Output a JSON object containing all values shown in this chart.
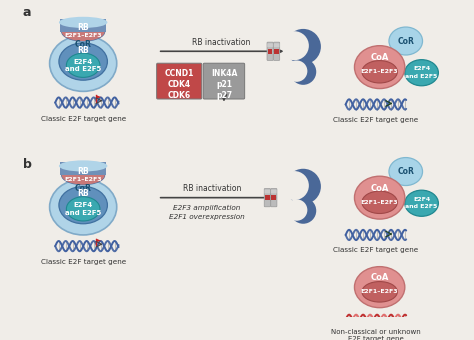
{
  "bg_color": "#f0ede8",
  "label_a": "a",
  "label_b": "b",
  "classic_label": "Classic E2F target gene",
  "nonclassic_label": "Non-classical or unknown\nE2F target gene",
  "rb_inactivation": "RB inactivation",
  "e2f3_amp": "E2F3 amplification\nE2F1 overexpression",
  "box1_lines": [
    "CCND1",
    "CDK4",
    "CDK6"
  ],
  "box2_lines": [
    "INK4A",
    "p21",
    "p27"
  ],
  "cor_label": "CoR",
  "rb_label": "RB",
  "e2f45_label": "E2F4\nand E2F5",
  "e2f13_label": "E2F1-E2F3",
  "coa_label": "CoA",
  "colors": {
    "light_blue_outer": "#9ec8e0",
    "mid_blue": "#5a8fb8",
    "teal": "#3aa8b0",
    "salmon_light": "#e89090",
    "salmon_dark": "#c05858",
    "rb_dome_blue": "#6888b0",
    "rb_dome_red": "#c87070",
    "box1_bg": "#c04848",
    "box2_bg": "#9a9a9a",
    "dna_blue": "#4060a0",
    "dna_red": "#c03030",
    "moon_blue": "#4a6898",
    "cor_circle": "#a8d4e8",
    "e2f45_circle": "#3aa8b0",
    "arrow_color": "#444444",
    "text_color": "#333333"
  }
}
